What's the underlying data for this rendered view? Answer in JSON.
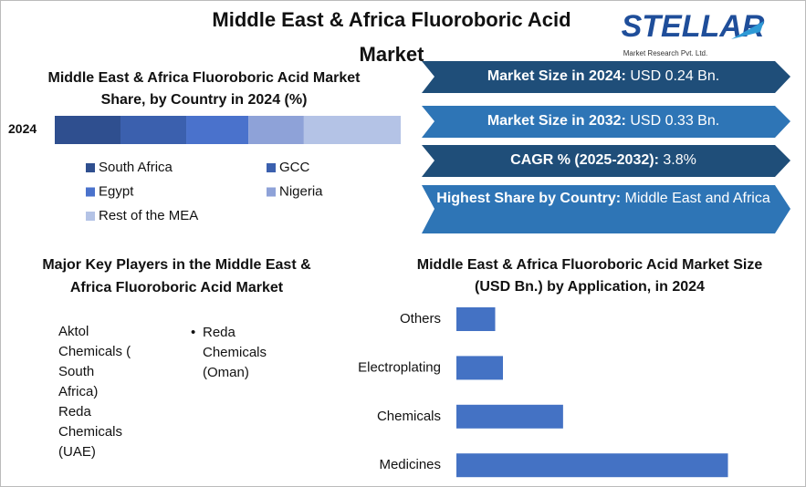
{
  "title": "Middle East & Africa Fluoroboric Acid Market",
  "logo": {
    "name": "STELLAR",
    "tagline": "Market Research Pvt. Ltd."
  },
  "stats": [
    {
      "label": "Market Size in 2024:",
      "value": "USD 0.24 Bn."
    },
    {
      "label": "Market Size in 2032:",
      "value": "USD 0.33 Bn."
    },
    {
      "label": "CAGR % (2025-2032):",
      "value": "3.8%"
    },
    {
      "label": "Highest Share by Country:",
      "value": "Middle East and Africa"
    }
  ],
  "key_players": {
    "title": "Major Key Players in the Middle East & Africa Fluoroboric Acid Market",
    "column1": [
      "Aktol Chemicals ( South Africa)",
      "Reda Chemicals (UAE)"
    ],
    "column2": [
      "Reda Chemicals (Oman)"
    ]
  },
  "chart_data": [
    {
      "type": "stacked_bar",
      "title": "Middle East & Africa Fluoroboric Acid Market Share, by Country in 2024 (%)",
      "categories": [
        "2024"
      ],
      "xlim": [
        0,
        100
      ],
      "series": [
        {
          "name": "South Africa",
          "color": "#2f4f8f",
          "values": [
            19
          ]
        },
        {
          "name": "GCC",
          "color": "#3b60ae",
          "values": [
            19
          ]
        },
        {
          "name": "Egypt",
          "color": "#4a72cc",
          "values": [
            18
          ]
        },
        {
          "name": "Nigeria",
          "color": "#8ea2d8",
          "values": [
            16
          ]
        },
        {
          "name": "Rest of the MEA",
          "color": "#b4c3e6",
          "values": [
            28
          ]
        }
      ]
    },
    {
      "type": "hbar",
      "title": "Middle East & Africa Fluoroboric Acid Market Size (USD Bn.) by Application, in 2024",
      "categories": [
        "Others",
        "Electroplating",
        "Chemicals",
        "Medicines"
      ],
      "values": [
        0.02,
        0.024,
        0.055,
        0.14
      ],
      "color": "#4472c4",
      "xlim": [
        0,
        0.16
      ]
    }
  ]
}
